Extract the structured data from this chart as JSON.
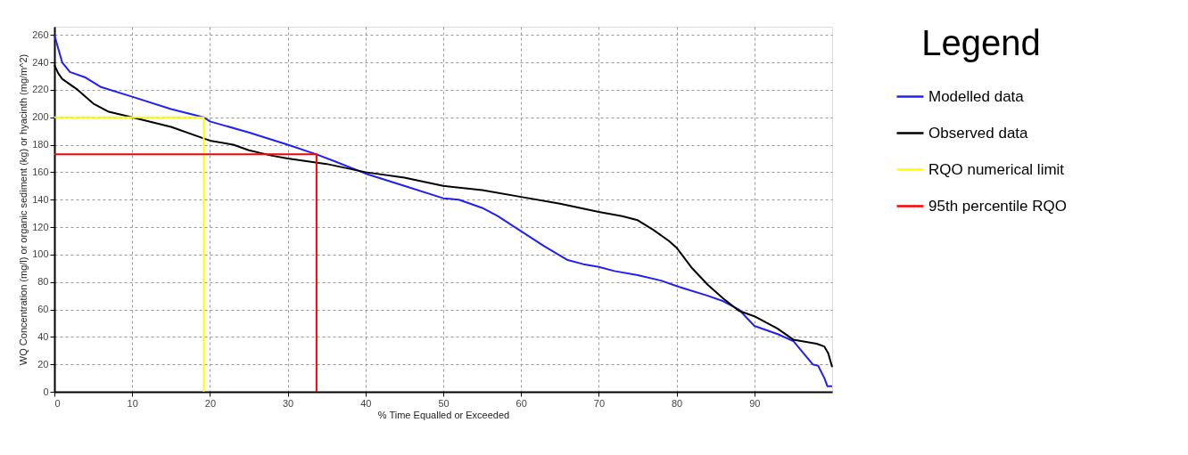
{
  "chart_data": {
    "type": "line",
    "xlabel": "% Time Equalled or Exceeded",
    "ylabel": "WQ Concentration (mg/l) or organic sediment (kg) or hyacinth (mg/m^2)",
    "legend_title": "Legend",
    "legend": "right",
    "grid": true,
    "line_style": "solid",
    "marker": "none",
    "xlim": [
      0,
      100
    ],
    "xticks": [
      0,
      10,
      20,
      30,
      40,
      50,
      60,
      70,
      80,
      90
    ],
    "ylim": [
      0,
      266
    ],
    "yticks": [
      0,
      20,
      40,
      60,
      80,
      100,
      120,
      140,
      160,
      180,
      200,
      220,
      240,
      260
    ],
    "series": [
      {
        "name": "Modelled data",
        "color": "#2020f0",
        "x": [
          0,
          0.5,
          1,
          2,
          4,
          6,
          10,
          15,
          19.2,
          20,
          25,
          30,
          33.7,
          36,
          40,
          45,
          50,
          52,
          55,
          57,
          60,
          63,
          66,
          68,
          70,
          72,
          75,
          78,
          80,
          84,
          86,
          88,
          90,
          93,
          95,
          97.5,
          98.2,
          99,
          99.4,
          100
        ],
        "values": [
          260,
          250,
          240,
          233,
          229,
          222,
          215,
          206,
          200,
          197,
          189,
          180,
          173,
          168,
          159,
          150,
          141,
          140,
          134,
          128,
          117,
          106,
          96,
          93,
          91,
          88,
          85,
          81,
          77,
          70,
          66,
          60,
          48,
          42,
          37,
          20,
          19,
          10,
          4,
          4
        ]
      },
      {
        "name": "Observed data",
        "color": "#000000",
        "x": [
          0,
          0.5,
          1,
          3,
          5,
          7,
          10,
          15,
          19,
          20,
          23,
          25,
          28,
          30,
          35,
          40,
          45,
          50,
          55,
          60,
          65,
          70,
          73,
          75,
          77,
          79,
          80,
          82,
          84,
          86,
          88,
          90,
          93,
          95,
          97,
          98,
          99,
          99.5,
          100
        ],
        "values": [
          238,
          232,
          228,
          220,
          210,
          204,
          200,
          193,
          185,
          183,
          180,
          176,
          172,
          170,
          166,
          160,
          156,
          150,
          147,
          142,
          137,
          131,
          128,
          125,
          118,
          110,
          105,
          90,
          78,
          68,
          59,
          55,
          46,
          38,
          36,
          35,
          33,
          28,
          18
        ]
      },
      {
        "name": "RQO numerical limit",
        "color": "#ffff00",
        "x": [
          0,
          19.2,
          19.2
        ],
        "values": [
          200,
          200,
          0
        ]
      },
      {
        "name": "95th percentile RQO",
        "color": "#ff0000",
        "x": [
          0,
          33.7,
          33.7
        ],
        "values": [
          173,
          173,
          0
        ]
      }
    ]
  }
}
